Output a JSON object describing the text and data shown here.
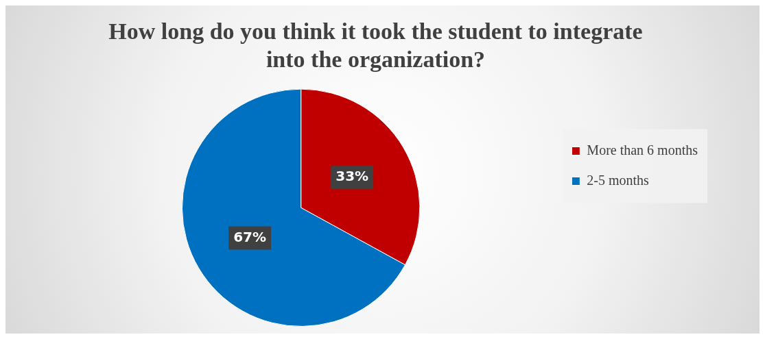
{
  "chart_data": {
    "type": "pie",
    "title": "How long do you think it took the student to integrate into the organization?",
    "categories": [
      "More than 6 months",
      "2-5 months"
    ],
    "values": [
      33,
      67
    ],
    "colors": [
      "#c00000",
      "#0070c0"
    ],
    "value_labels": [
      "33%",
      "67%"
    ],
    "legend": "right"
  }
}
